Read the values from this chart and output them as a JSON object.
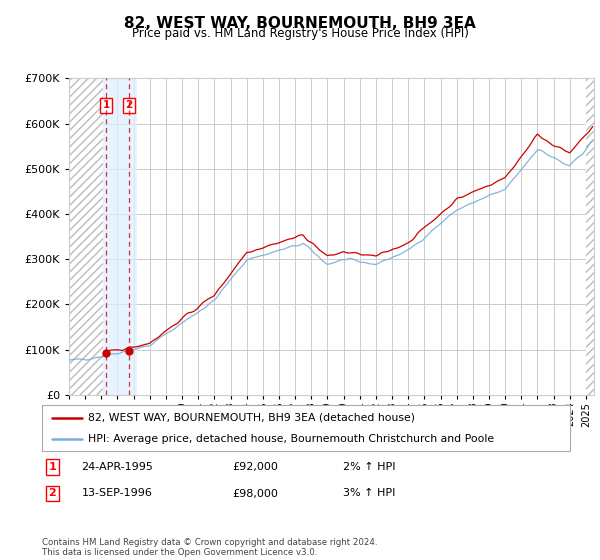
{
  "title": "82, WEST WAY, BOURNEMOUTH, BH9 3EA",
  "subtitle": "Price paid vs. HM Land Registry's House Price Index (HPI)",
  "legend_line1": "82, WEST WAY, BOURNEMOUTH, BH9 3EA (detached house)",
  "legend_line2": "HPI: Average price, detached house, Bournemouth Christchurch and Poole",
  "footer": "Contains HM Land Registry data © Crown copyright and database right 2024.\nThis data is licensed under the Open Government Licence v3.0.",
  "sale1_date_label": "24-APR-1995",
  "sale1_price_label": "£92,000",
  "sale1_hpi_label": "2% ↑ HPI",
  "sale1_year": 1995.29,
  "sale1_price": 92000,
  "sale2_date_label": "13-SEP-1996",
  "sale2_price_label": "£98,000",
  "sale2_hpi_label": "3% ↑ HPI",
  "sale2_year": 1996.7,
  "sale2_price": 98000,
  "ylim_min": 0,
  "ylim_max": 700000,
  "xmin": 1993,
  "xmax": 2025.5,
  "hatch_xmin": 1993.0,
  "hatch_xmax": 1995.1,
  "shade_xmin": 1995.1,
  "shade_xmax": 1997.2,
  "price_line_color": "#cc0000",
  "hpi_line_color": "#7aabdb",
  "hatch_color": "#cccccc",
  "shade_color": "#ddeeff",
  "grid_color": "#cccccc",
  "background_color": "#ffffff"
}
